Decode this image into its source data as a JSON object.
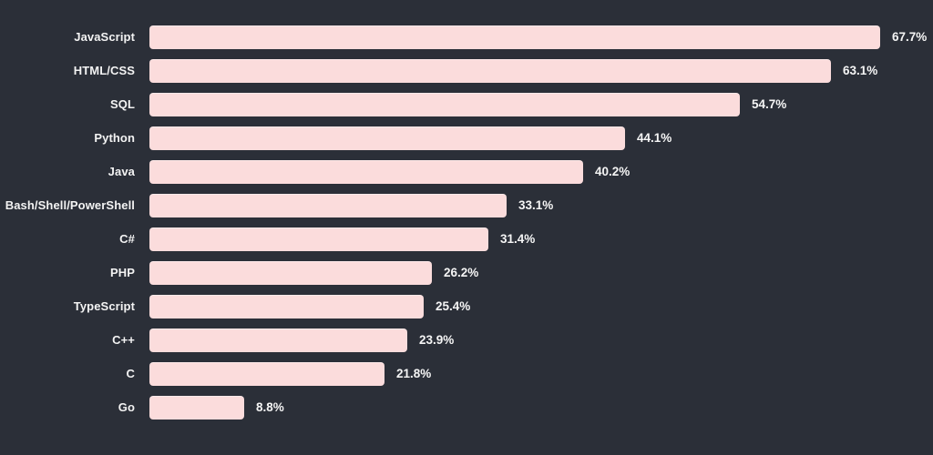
{
  "chart_data": {
    "type": "bar",
    "orientation": "horizontal",
    "title": "",
    "xlabel": "",
    "ylabel": "",
    "xlim": [
      0,
      68
    ],
    "grid": false,
    "legend": null,
    "categories": [
      "JavaScript",
      "HTML/CSS",
      "SQL",
      "Python",
      "Java",
      "Bash/Shell/PowerShell",
      "C#",
      "PHP",
      "TypeScript",
      "C++",
      "C",
      "Go"
    ],
    "values": [
      67.7,
      63.1,
      54.7,
      44.1,
      40.2,
      33.1,
      31.4,
      26.2,
      25.4,
      23.9,
      21.8,
      8.8
    ],
    "value_labels": [
      "67.7%",
      "63.1%",
      "54.7%",
      "44.1%",
      "40.2%",
      "33.1%",
      "31.4%",
      "26.2%",
      "25.4%",
      "23.9%",
      "21.8%",
      "8.8%"
    ]
  },
  "colors": {
    "background": "#2b2f38",
    "bar_fill": "#fbdcdc",
    "bar_highlight": "#fde9e9",
    "label_text": "#f3f3f3",
    "value_text": "#f5f5f5"
  }
}
